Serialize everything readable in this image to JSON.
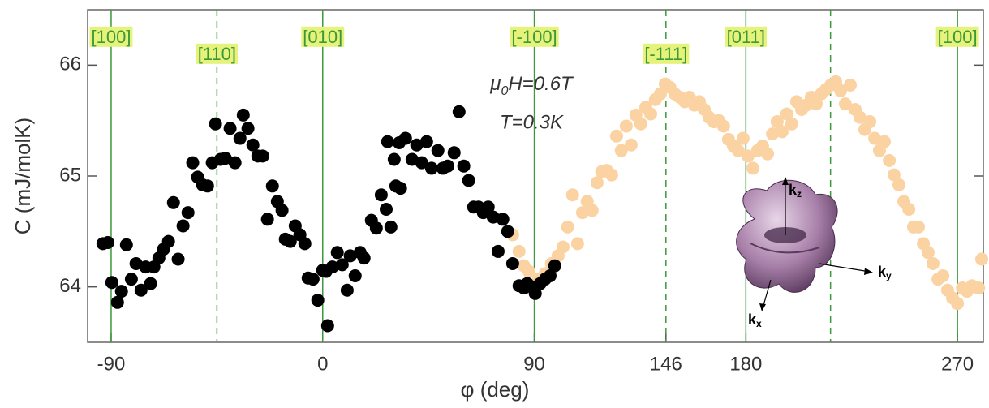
{
  "chart_data": {
    "type": "scatter",
    "y_label": "C (mJ/molK)",
    "x_label": "φ  (deg)",
    "xlim": [
      -100,
      281
    ],
    "ylim": [
      63.5,
      66.5
    ],
    "xticks": [
      -90,
      0,
      90,
      146,
      180,
      270
    ],
    "yticks": [
      64,
      65,
      66
    ],
    "field_label": [
      "μ",
      "0",
      "H=0.6T"
    ],
    "temp_label": "T=0.3K",
    "inset_axes": [
      [
        "k",
        "z"
      ],
      [
        "k",
        "y"
      ],
      [
        "k",
        "x"
      ]
    ],
    "direction_color": "#3a9a3a",
    "directions": [
      {
        "x": -90,
        "label": "[100]",
        "style": "solid"
      },
      {
        "x": -45,
        "label": "[110]",
        "style": "dashed"
      },
      {
        "x": 0,
        "label": "[010]",
        "style": "solid"
      },
      {
        "x": 90,
        "label": "[-100]",
        "style": "solid"
      },
      {
        "x": 146,
        "label": "[-111]",
        "style": "dashed"
      },
      {
        "x": 180,
        "label": "[011]",
        "style": "solid"
      },
      {
        "x": 216,
        "label": null,
        "style": "dashed"
      },
      {
        "x": 270,
        "label": "[100]",
        "style": "solid"
      }
    ],
    "series": [
      {
        "name": null,
        "color": "#fbd3a3",
        "x": [
          80.8,
          83.5,
          85.6,
          87.7,
          91.8,
          94.6,
          97.3,
          100.1,
          102.2,
          104.2,
          106.3,
          108.4,
          110.5,
          112.5,
          114.6,
          116.7,
          118.7,
          120.8,
          122.9,
          125,
          127,
          129.1,
          131.2,
          133.2,
          135.3,
          137.4,
          139.5,
          141.5,
          143.6,
          145.7,
          147.7,
          149.8,
          151.9,
          154,
          156,
          158.1,
          160.2,
          162.3,
          164.3,
          166.4,
          168.5,
          170.5,
          172.6,
          174.7,
          176.7,
          178.8,
          180.9,
          183,
          185,
          187.1,
          189.2,
          191.3,
          193.3,
          195.4,
          197.4,
          199.5,
          201.6,
          203.7,
          205.7,
          207.8,
          209.9,
          212,
          214,
          216.1,
          218.2,
          220.3,
          222.3,
          224.4,
          226.5,
          228.5,
          230.6,
          232.7,
          234.8,
          236.8,
          238.9,
          241,
          243,
          245.1,
          247.2,
          249.3,
          251.3,
          253.4,
          255.5,
          257.5,
          259.6,
          261.7,
          263.8,
          265.8,
          267.9,
          270,
          272.1,
          274.1,
          276.2,
          279,
          280.3
        ],
        "values": [
          64.47,
          64.32,
          64.19,
          64.14,
          64.07,
          64.12,
          64.21,
          64.28,
          64.36,
          64.54,
          64.83,
          64.39,
          64.67,
          64.77,
          64.69,
          64.94,
          65.04,
          65.05,
          65.01,
          65.36,
          65.23,
          65.45,
          65.28,
          65.55,
          65.47,
          65.62,
          65.56,
          65.69,
          65.74,
          65.83,
          65.8,
          65.74,
          65.71,
          65.67,
          65.71,
          65.64,
          65.67,
          65.6,
          65.53,
          65.49,
          65.5,
          65.45,
          65.33,
          65.27,
          65.23,
          65.34,
          65.18,
          65.07,
          65.23,
          65.27,
          65.2,
          65.38,
          65.49,
          65.4,
          65.56,
          65.47,
          65.67,
          65.6,
          65.64,
          65.71,
          65.65,
          65.74,
          65.78,
          65.82,
          65.85,
          65.77,
          65.65,
          65.82,
          65.6,
          65.53,
          65.42,
          65.49,
          65.34,
          65.23,
          65.31,
          65.14,
          65.01,
          64.92,
          64.77,
          64.7,
          64.54,
          64.54,
          64.39,
          64.31,
          64.21,
          64.07,
          64.1,
          63.97,
          63.9,
          63.85,
          63.99,
          63.96,
          64.01,
          63.99,
          64.25
        ]
      },
      {
        "name": null,
        "color": "#000000",
        "x": [
          -93.5,
          -91.4,
          -89.7,
          -87.3,
          -85.6,
          -83.5,
          -81.4,
          -79.4,
          -77.3,
          -75.3,
          -73.2,
          -71.8,
          -69.7,
          -67.7,
          -65.6,
          -63.5,
          -61.5,
          -59.4,
          -57.3,
          -55.3,
          -53.2,
          -51.1,
          -49,
          -47,
          -45.6,
          -43.5,
          -41.4,
          -39.4,
          -37.3,
          -35.2,
          -33.8,
          -31.8,
          -29.7,
          -27.6,
          -25.5,
          -23.5,
          -21.4,
          -19.3,
          -17.3,
          -15.9,
          -13.8,
          -11.7,
          -9.7,
          -7.6,
          -6.2,
          -4.1,
          -2.1,
          0,
          1.4,
          2.1,
          4.1,
          6.2,
          8.3,
          10.4,
          11.7,
          13.8,
          15.9,
          17.6,
          20.7,
          22.8,
          24.9,
          27,
          29,
          31.1,
          33.1,
          27.6,
          30.4,
          32.5,
          35.2,
          38,
          40,
          42.1,
          44.2,
          46.3,
          49,
          51.1,
          53.2,
          55.9,
          58,
          60,
          62.1,
          64.2,
          66.3,
          68.3,
          70.4,
          72.5,
          74.6,
          76.6,
          78.7,
          80.8,
          83.5,
          85.6,
          87,
          89,
          90.4,
          92.5,
          94.6,
          96.7,
          98.7
        ],
        "values": [
          64.39,
          64.4,
          64.04,
          63.86,
          63.96,
          64.38,
          64.07,
          64.21,
          63.97,
          64.18,
          64.03,
          64.18,
          64.26,
          64.34,
          64.41,
          64.76,
          64.25,
          64.55,
          64.67,
          65.12,
          64.99,
          64.92,
          64.91,
          65.12,
          65.47,
          65.15,
          65.16,
          65.43,
          65.12,
          65.34,
          65.55,
          65.43,
          65.28,
          65.18,
          65.18,
          64.61,
          64.91,
          64.77,
          64.69,
          64.43,
          64.41,
          64.55,
          64.47,
          64.39,
          64.08,
          64.07,
          63.88,
          64.15,
          64.14,
          63.65,
          64.18,
          64.31,
          64.2,
          63.97,
          64.28,
          64.1,
          64.31,
          64.26,
          64.6,
          64.53,
          64.83,
          64.7,
          64.54,
          64.91,
          64.89,
          65.31,
          65.15,
          65.3,
          65.34,
          65.15,
          65.28,
          65.12,
          65.31,
          65.07,
          65.23,
          65.07,
          65.09,
          65.21,
          65.58,
          65.09,
          64.96,
          64.72,
          64.72,
          64.67,
          64.72,
          64.63,
          64.32,
          64.61,
          64.5,
          64.21,
          64.01,
          63.99,
          64.03,
          64,
          63.94,
          64.03,
          64.07,
          64.1,
          64.19
        ]
      }
    ]
  }
}
